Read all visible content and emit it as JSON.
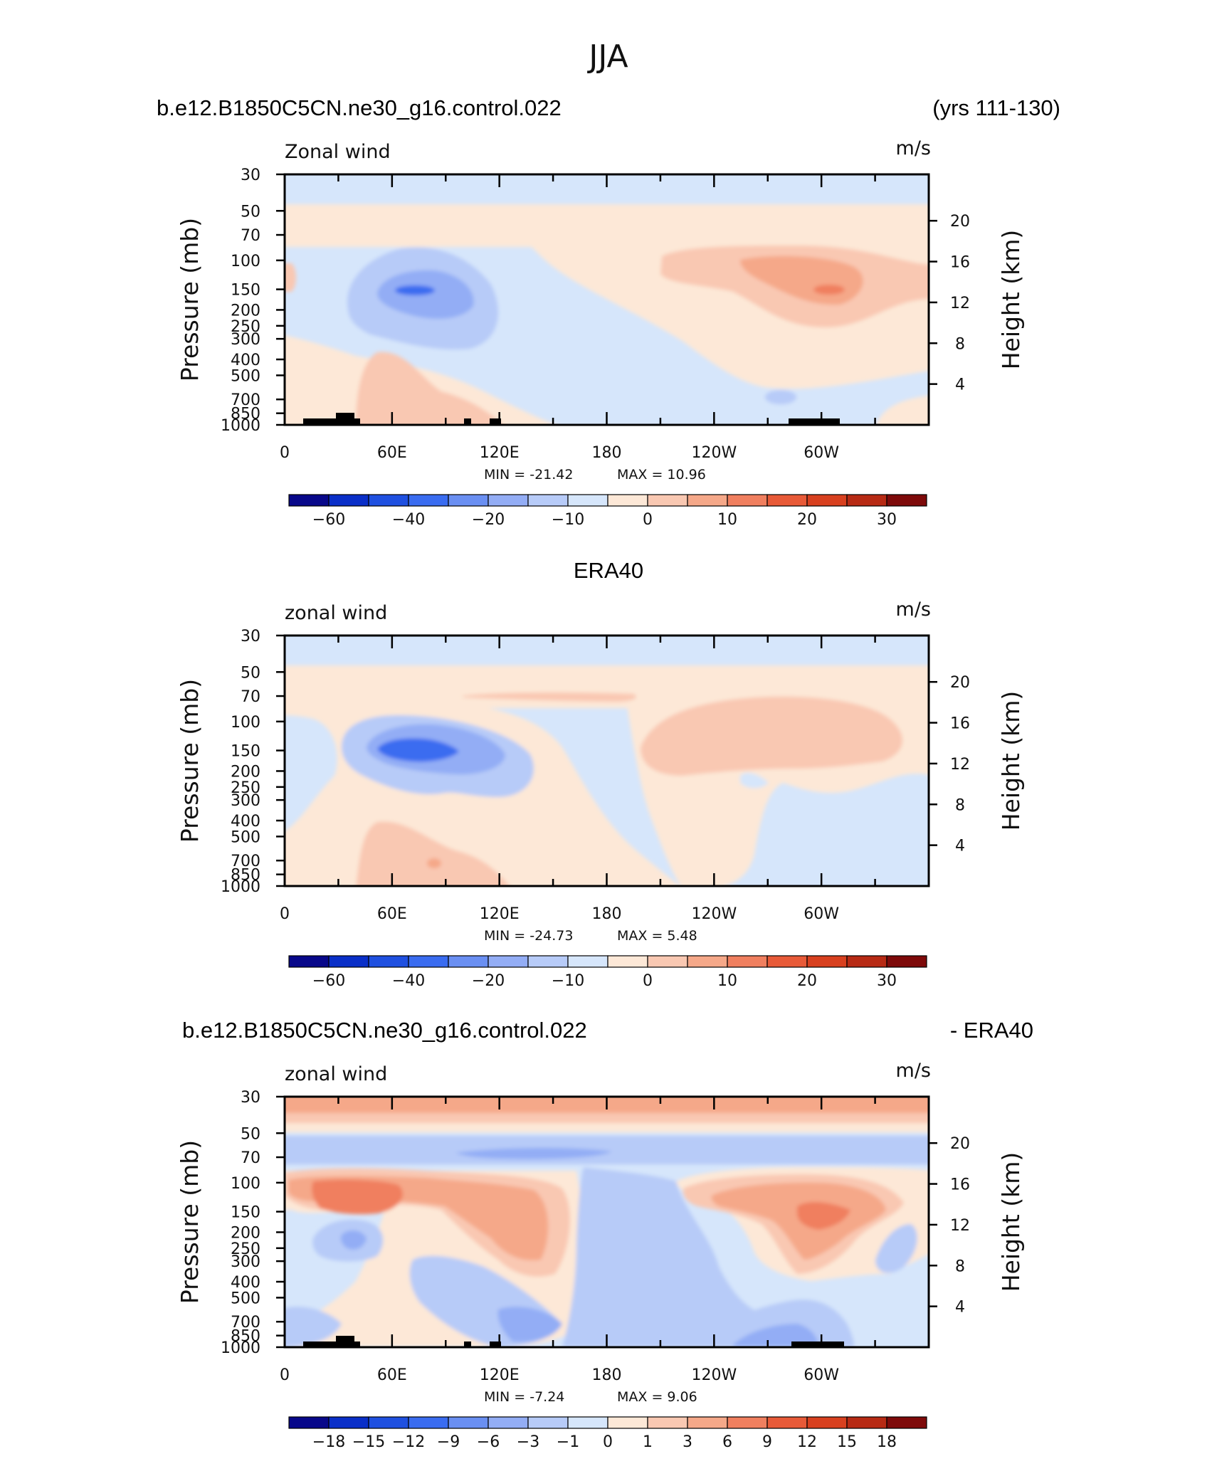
{
  "figure_title": "JJA",
  "chart_data": [
    {
      "type": "heatmap",
      "panel_title_left": "b.e12.B1850C5CN.ne30_g16.control.022",
      "panel_title_right": "(yrs 111-130)",
      "title_center": "",
      "variable_label": "Zonal wind",
      "units": "m/s",
      "ylabel": "Pressure (mb)",
      "ylabel_right": "Height (km)",
      "y_ticks": [
        "30",
        "50",
        "70",
        "100",
        "150",
        "200",
        "250",
        "300",
        "400",
        "500",
        "700",
        "850",
        "1000"
      ],
      "height_ticks": [
        "20",
        "16",
        "12",
        "8",
        "4"
      ],
      "x_ticks": [
        "0",
        "60E",
        "120E",
        "180",
        "120W",
        "60W"
      ],
      "min_label": "MIN = -21.42",
      "max_label": "MAX = 10.96",
      "levels": [
        -70,
        -60,
        -50,
        -40,
        -30,
        -20,
        -15,
        -10,
        -5,
        0,
        5,
        10,
        15,
        20,
        25,
        30,
        35
      ],
      "colorbar_labels": [
        "-60",
        "-40",
        "-20",
        "-10",
        "0",
        "10",
        "20",
        "30"
      ]
    },
    {
      "type": "heatmap",
      "panel_title_left": "",
      "panel_title_right": "",
      "title_center": "ERA40",
      "variable_label": "zonal wind",
      "units": "m/s",
      "ylabel": "Pressure (mb)",
      "ylabel_right": "Height (km)",
      "y_ticks": [
        "30",
        "50",
        "70",
        "100",
        "150",
        "200",
        "250",
        "300",
        "400",
        "500",
        "700",
        "850",
        "1000"
      ],
      "height_ticks": [
        "20",
        "16",
        "12",
        "8",
        "4"
      ],
      "x_ticks": [
        "0",
        "60E",
        "120E",
        "180",
        "120W",
        "60W"
      ],
      "min_label": "MIN = -24.73",
      "max_label": "MAX = 5.48",
      "levels": [
        -70,
        -60,
        -50,
        -40,
        -30,
        -20,
        -15,
        -10,
        -5,
        0,
        5,
        10,
        15,
        20,
        25,
        30,
        35
      ],
      "colorbar_labels": [
        "-60",
        "-40",
        "-20",
        "-10",
        "0",
        "10",
        "20",
        "30"
      ]
    },
    {
      "type": "heatmap",
      "panel_title_left": "b.e12.B1850C5CN.ne30_g16.control.022",
      "panel_title_right": "- ERA40",
      "title_center": "",
      "variable_label": "zonal wind",
      "units": "m/s",
      "ylabel": "Pressure (mb)",
      "ylabel_right": "Height (km)",
      "y_ticks": [
        "30",
        "50",
        "70",
        "100",
        "150",
        "200",
        "250",
        "300",
        "400",
        "500",
        "700",
        "850",
        "1000"
      ],
      "height_ticks": [
        "20",
        "16",
        "12",
        "8",
        "4"
      ],
      "x_ticks": [
        "0",
        "60E",
        "120E",
        "180",
        "120W",
        "60W"
      ],
      "min_label": "MIN = -7.24",
      "max_label": "MAX = 9.06",
      "levels": [
        -21,
        -18,
        -15,
        -12,
        -9,
        -6,
        -3,
        -1,
        0,
        1,
        3,
        6,
        9,
        12,
        15,
        18,
        21
      ],
      "colorbar_labels": [
        "-18",
        "-15",
        "-12",
        "-9",
        "-6",
        "-3",
        "-1",
        "0",
        "1",
        "3",
        "6",
        "9",
        "12",
        "15",
        "18"
      ]
    }
  ],
  "colors": {
    "palette": [
      "#08088a",
      "#0a2fc8",
      "#1f50e0",
      "#3a6cf0",
      "#6a8ff2",
      "#93adf5",
      "#b7cbf8",
      "#d6e6fb",
      "#fde8d7",
      "#f9c8b2",
      "#f5a889",
      "#f07f5f",
      "#e85a38",
      "#d8401f",
      "#b72a14",
      "#7e0a0a"
    ],
    "diff_palette": [
      "#08088a",
      "#0a2fc8",
      "#1f50e0",
      "#3a6cf0",
      "#6a8ff2",
      "#93adf5",
      "#b7cbf8",
      "#d6e6fb",
      "#fde8d7",
      "#f9c8b2",
      "#f5a889",
      "#f07f5f",
      "#e85a38",
      "#d8401f",
      "#b72a14",
      "#7e0a0a"
    ]
  }
}
